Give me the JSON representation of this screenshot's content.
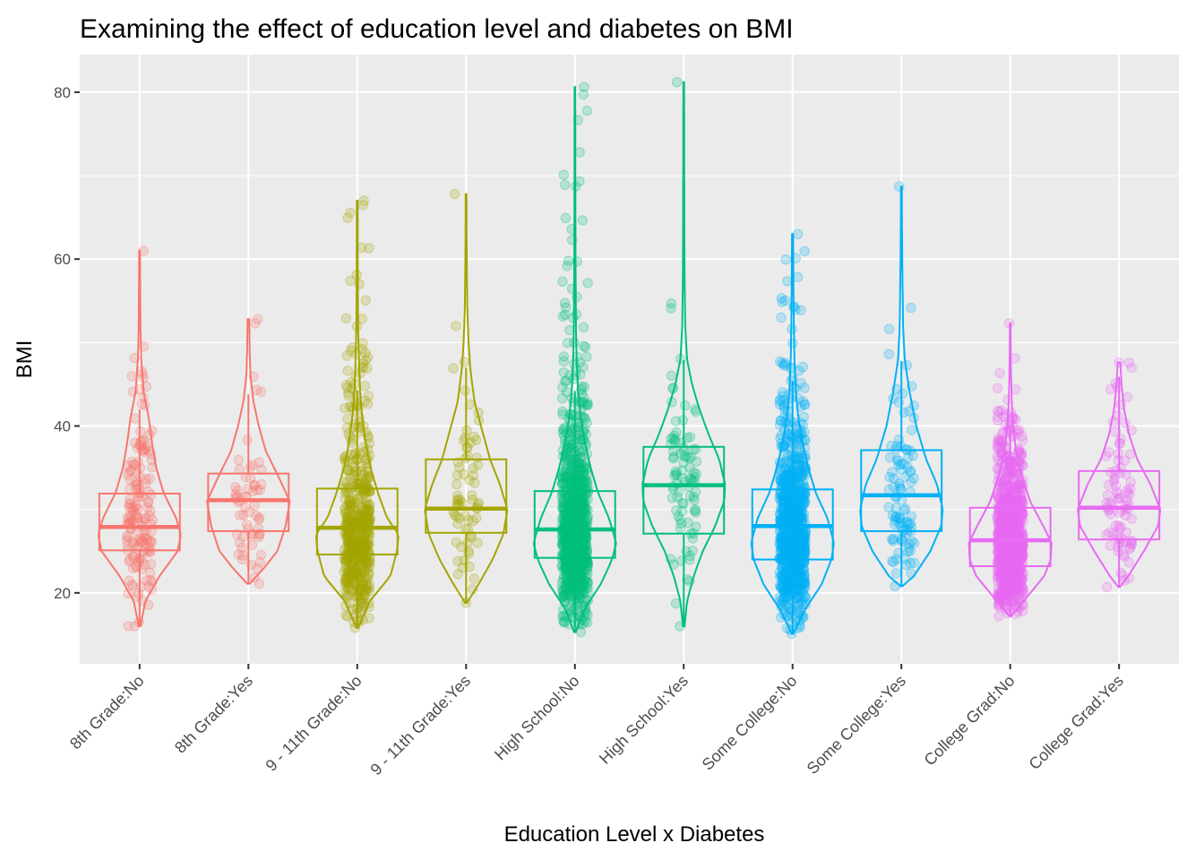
{
  "chart_data": {
    "type": "violin-box-jitter",
    "title": "Examining the effect of education level and diabetes on BMI",
    "xlabel": "Education Level x Diabetes",
    "ylabel": "BMI",
    "ylim": [
      11.5,
      84.5
    ],
    "yticks": [
      20,
      40,
      60,
      80
    ],
    "grid": true,
    "legend": "none",
    "categories": [
      "8th Grade:No",
      "8th Grade:Yes",
      "9 - 11th Grade:No",
      "9 - 11th Grade:Yes",
      "High School:No",
      "High School:Yes",
      "Some College:No",
      "Some College:Yes",
      "College Grad:No",
      "College Grad:Yes"
    ],
    "colors": [
      "#F8766D",
      "#F8766D",
      "#A3A500",
      "#A3A500",
      "#00BF7D",
      "#00BF7D",
      "#00B0F6",
      "#00B0F6",
      "#E76BF3",
      "#E76BF3"
    ],
    "boxes": [
      {
        "q1": 25.1,
        "median": 27.9,
        "q3": 31.9,
        "whisker_low": 16.0,
        "whisker_high": 42.0
      },
      {
        "q1": 27.4,
        "median": 31.1,
        "q3": 34.3,
        "whisker_low": 21.1,
        "whisker_high": 43.8
      },
      {
        "q1": 24.6,
        "median": 27.8,
        "q3": 32.5,
        "whisker_low": 16.0,
        "whisker_high": 44.3
      },
      {
        "q1": 27.2,
        "median": 30.1,
        "q3": 36.0,
        "whisker_low": 18.8,
        "whisker_high": 47.0
      },
      {
        "q1": 24.2,
        "median": 27.6,
        "q3": 32.2,
        "whisker_low": 15.3,
        "whisker_high": 44.2
      },
      {
        "q1": 27.1,
        "median": 32.9,
        "q3": 37.5,
        "whisker_low": 16.0,
        "whisker_high": 47.9
      },
      {
        "q1": 24.0,
        "median": 28.0,
        "q3": 32.4,
        "whisker_low": 15.1,
        "whisker_high": 45.4
      },
      {
        "q1": 27.4,
        "median": 31.7,
        "q3": 37.1,
        "whisker_low": 20.8,
        "whisker_high": 47.8
      },
      {
        "q1": 23.2,
        "median": 26.3,
        "q3": 30.2,
        "whisker_low": 17.2,
        "whisker_high": 40.0
      },
      {
        "q1": 26.4,
        "median": 30.2,
        "q3": 34.6,
        "whisker_low": 20.7,
        "whisker_high": 45.9
      }
    ],
    "violins": [
      {
        "min": 16.0,
        "max": 61.0,
        "profile": [
          [
            16,
            0.02
          ],
          [
            19,
            0.14
          ],
          [
            22,
            0.48
          ],
          [
            25,
            0.92
          ],
          [
            27,
            1.0
          ],
          [
            29,
            0.88
          ],
          [
            32,
            0.58
          ],
          [
            35,
            0.4
          ],
          [
            38,
            0.3
          ],
          [
            41,
            0.22
          ],
          [
            44,
            0.1
          ],
          [
            48,
            0.04
          ],
          [
            52,
            0.02
          ],
          [
            56,
            0.015
          ],
          [
            61,
            0.01
          ]
        ]
      },
      {
        "min": 21.1,
        "max": 52.8,
        "profile": [
          [
            21.1,
            0.03
          ],
          [
            23,
            0.38
          ],
          [
            25,
            0.7
          ],
          [
            28,
            0.9
          ],
          [
            31,
            1.0
          ],
          [
            34,
            0.72
          ],
          [
            37,
            0.42
          ],
          [
            40,
            0.25
          ],
          [
            43,
            0.12
          ],
          [
            46,
            0.05
          ],
          [
            49,
            0.03
          ],
          [
            52.8,
            0.02
          ]
        ]
      },
      {
        "min": 15.8,
        "max": 67.0,
        "profile": [
          [
            15.8,
            0.02
          ],
          [
            19,
            0.3
          ],
          [
            22,
            0.8
          ],
          [
            25,
            0.96
          ],
          [
            27,
            1.0
          ],
          [
            29,
            0.72
          ],
          [
            32,
            0.5
          ],
          [
            35,
            0.32
          ],
          [
            38,
            0.2
          ],
          [
            41,
            0.12
          ],
          [
            44,
            0.07
          ],
          [
            48,
            0.04
          ],
          [
            52,
            0.02
          ],
          [
            60,
            0.012
          ],
          [
            67,
            0.01
          ]
        ]
      },
      {
        "min": 18.8,
        "max": 67.8,
        "profile": [
          [
            18.8,
            0.02
          ],
          [
            21,
            0.3
          ],
          [
            24,
            0.64
          ],
          [
            27,
            0.9
          ],
          [
            30,
            1.0
          ],
          [
            33,
            0.82
          ],
          [
            36,
            0.58
          ],
          [
            40,
            0.36
          ],
          [
            43,
            0.2
          ],
          [
            47,
            0.1
          ],
          [
            50,
            0.06
          ],
          [
            54,
            0.03
          ],
          [
            58,
            0.02
          ],
          [
            63,
            0.012
          ],
          [
            67.8,
            0.01
          ]
        ]
      },
      {
        "min": 15.3,
        "max": 80.6,
        "profile": [
          [
            15.3,
            0.02
          ],
          [
            18,
            0.22
          ],
          [
            21,
            0.62
          ],
          [
            24,
            0.9
          ],
          [
            26,
            1.0
          ],
          [
            29,
            0.82
          ],
          [
            32,
            0.56
          ],
          [
            35,
            0.38
          ],
          [
            38,
            0.24
          ],
          [
            41,
            0.14
          ],
          [
            44,
            0.08
          ],
          [
            48,
            0.04
          ],
          [
            52,
            0.025
          ],
          [
            60,
            0.015
          ],
          [
            70,
            0.01
          ],
          [
            80.6,
            0.008
          ]
        ]
      },
      {
        "min": 16.0,
        "max": 81.2,
        "profile": [
          [
            16,
            0.02
          ],
          [
            19,
            0.08
          ],
          [
            22,
            0.24
          ],
          [
            25,
            0.46
          ],
          [
            28,
            0.76
          ],
          [
            31,
            0.98
          ],
          [
            33,
            1.0
          ],
          [
            36,
            0.86
          ],
          [
            39,
            0.6
          ],
          [
            42,
            0.38
          ],
          [
            45,
            0.2
          ],
          [
            48,
            0.08
          ],
          [
            52,
            0.035
          ],
          [
            58,
            0.02
          ],
          [
            66,
            0.014
          ],
          [
            81.2,
            0.01
          ]
        ]
      },
      {
        "min": 15.1,
        "max": 63.0,
        "profile": [
          [
            15.1,
            0.02
          ],
          [
            18,
            0.3
          ],
          [
            21,
            0.7
          ],
          [
            24,
            0.94
          ],
          [
            26,
            1.0
          ],
          [
            29,
            0.84
          ],
          [
            32,
            0.56
          ],
          [
            35,
            0.38
          ],
          [
            38,
            0.24
          ],
          [
            41,
            0.14
          ],
          [
            44,
            0.08
          ],
          [
            48,
            0.045
          ],
          [
            52,
            0.03
          ],
          [
            57,
            0.02
          ],
          [
            63,
            0.012
          ]
        ]
      },
      {
        "min": 20.8,
        "max": 68.7,
        "profile": [
          [
            20.8,
            0.02
          ],
          [
            22,
            0.3
          ],
          [
            25,
            0.7
          ],
          [
            28,
            0.96
          ],
          [
            30,
            1.0
          ],
          [
            33,
            0.86
          ],
          [
            36,
            0.6
          ],
          [
            40,
            0.36
          ],
          [
            44,
            0.2
          ],
          [
            48,
            0.08
          ],
          [
            52,
            0.04
          ],
          [
            56,
            0.03
          ],
          [
            60,
            0.02
          ],
          [
            65,
            0.012
          ],
          [
            68.7,
            0.01
          ]
        ]
      },
      {
        "min": 17.2,
        "max": 52.3,
        "profile": [
          [
            17.2,
            0.02
          ],
          [
            19,
            0.32
          ],
          [
            22,
            0.82
          ],
          [
            24,
            0.98
          ],
          [
            26,
            1.0
          ],
          [
            28,
            0.8
          ],
          [
            31,
            0.48
          ],
          [
            34,
            0.28
          ],
          [
            37,
            0.14
          ],
          [
            40,
            0.07
          ],
          [
            43,
            0.035
          ],
          [
            46,
            0.02
          ],
          [
            49,
            0.012
          ],
          [
            52.3,
            0.008
          ]
        ]
      },
      {
        "min": 20.7,
        "max": 47.6,
        "profile": [
          [
            20.7,
            0.02
          ],
          [
            22,
            0.22
          ],
          [
            25,
            0.6
          ],
          [
            28,
            0.94
          ],
          [
            30,
            1.0
          ],
          [
            33,
            0.76
          ],
          [
            36,
            0.44
          ],
          [
            39,
            0.24
          ],
          [
            42,
            0.12
          ],
          [
            45,
            0.06
          ],
          [
            47.6,
            0.03
          ]
        ]
      }
    ],
    "jitter_counts": [
      160,
      60,
      520,
      70,
      900,
      90,
      820,
      100,
      900,
      90
    ]
  }
}
